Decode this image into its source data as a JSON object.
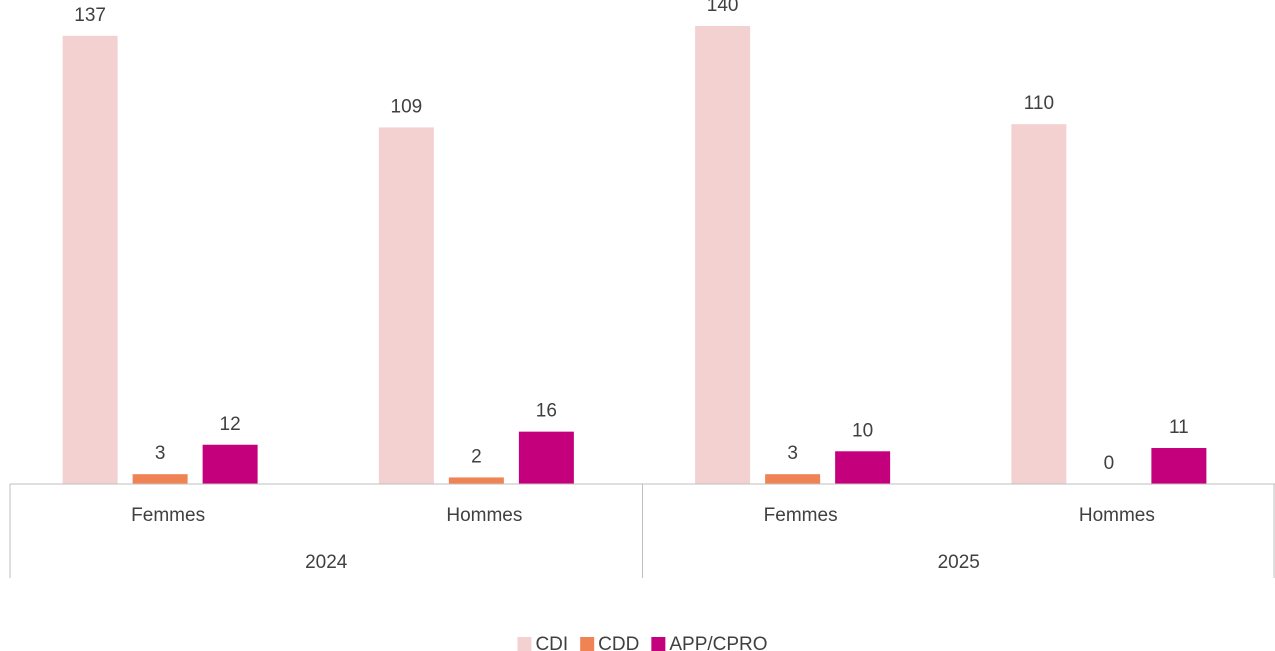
{
  "chart_data": {
    "type": "bar",
    "categories": [
      "Femmes",
      "Hommes",
      "Femmes",
      "Hommes"
    ],
    "groups": [
      "2024",
      "2025"
    ],
    "series": [
      {
        "name": "CDI",
        "color": "#f4d1d1",
        "values": [
          137,
          109,
          140,
          110
        ]
      },
      {
        "name": "CDD",
        "color": "#ef8354",
        "values": [
          3,
          2,
          3,
          0
        ]
      },
      {
        "name": "APP/CPRO",
        "color": "#c5007c",
        "values": [
          12,
          16,
          10,
          11
        ]
      }
    ],
    "legend": "bottom"
  }
}
